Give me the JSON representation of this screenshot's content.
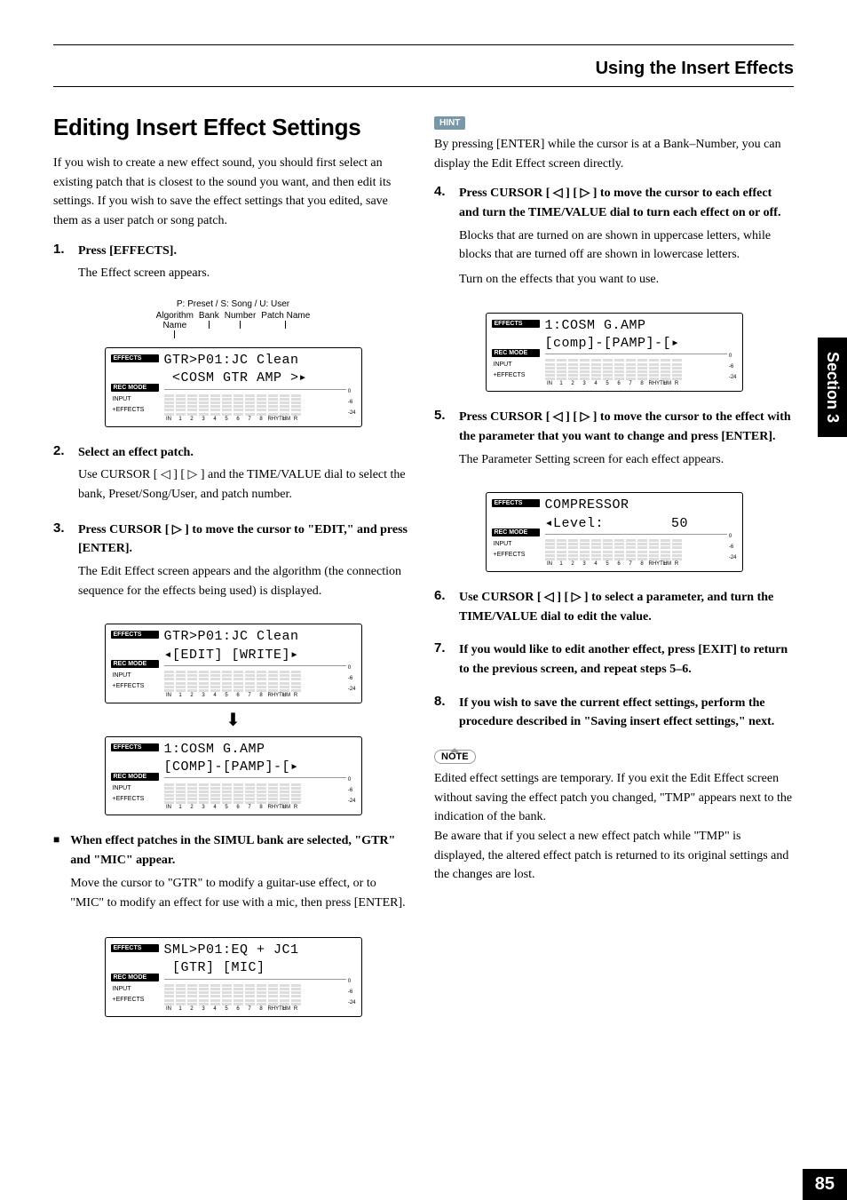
{
  "header": {
    "title": "Using the Insert Effects"
  },
  "h1": "Editing Insert Effect Settings",
  "intro": "If you wish to create a new effect sound, you should first select an existing patch that is closest to the sound you want, and then edit its settings. If you wish to save the effect settings that you edited, save them as a user patch or song patch.",
  "step1": {
    "num": "1.",
    "lead": "Press [EFFECTS].",
    "body": "The Effect screen appears."
  },
  "fig1": {
    "top": "P: Preset / S: Song / U: User",
    "algo": "Algorithm\nName",
    "bank": "Bank",
    "number": "Number",
    "patch": "Patch Name",
    "line1": "GTR>P01:JC Clean",
    "line2": " <COSM GTR AMP >▸",
    "meters": [
      "IN",
      "1",
      "2",
      "3",
      "4",
      "5",
      "6",
      "7",
      "8",
      "RHYTHM",
      "L",
      "R"
    ],
    "scale": [
      "0",
      "-6",
      "-24"
    ],
    "side_effects": "EFFECTS",
    "side_rec": "REC MODE",
    "side_input": "INPUT",
    "side_plus": "+EFFECTS"
  },
  "step2": {
    "num": "2.",
    "lead": "Select an effect patch.",
    "body": "Use CURSOR [ ◁ ] [ ▷ ] and the TIME/VALUE dial to select the bank, Preset/Song/User, and patch number."
  },
  "step3": {
    "num": "3.",
    "lead": "Press CURSOR [ ▷ ] to move the cursor to \"EDIT,\" and press [ENTER].",
    "body": "The Edit Effect screen appears and the algorithm (the connection sequence for the effects being used) is displayed."
  },
  "fig2a": {
    "line1": "GTR>P01:JC Clean",
    "line2": "◂[EDIT] [WRITE]▸"
  },
  "fig2b": {
    "line1": "1:COSM G.AMP",
    "line2": "[COMP]-[PAMP]-[▸"
  },
  "simul": {
    "lead": "When effect patches in the SIMUL bank are selected, \"GTR\" and \"MIC\" appear.",
    "body": "Move the cursor to \"GTR\" to modify a guitar-use effect, or to \"MIC\" to modify an effect for use with a mic, then press [ENTER]."
  },
  "fig3": {
    "line1": "SML>P01:EQ + JC1",
    "line2": " [GTR] [MIC]"
  },
  "hint": {
    "label": "HINT",
    "body": "By pressing [ENTER] while the cursor is at a Bank–Number, you can display the Edit Effect screen directly."
  },
  "step4": {
    "num": "4.",
    "lead": "Press CURSOR [ ◁ ] [ ▷ ] to move the cursor to each effect and turn the TIME/VALUE dial to turn each effect on or off.",
    "body1": "Blocks that are turned on are shown in uppercase letters, while blocks that are turned off are shown in lowercase letters.",
    "body2": "Turn on the effects that you want to use."
  },
  "fig4": {
    "line1": "1:COSM G.AMP",
    "line2": "[comp]-[PAMP]-[▸"
  },
  "step5": {
    "num": "5.",
    "lead": "Press CURSOR [ ◁ ] [ ▷ ] to move the cursor to the effect with the parameter that you want to change and press [ENTER].",
    "body": "The Parameter Setting screen for each effect appears."
  },
  "fig5": {
    "line1": "COMPRESSOR",
    "line2": "◂Level:        50"
  },
  "step6": {
    "num": "6.",
    "lead": "Use CURSOR [ ◁ ] [ ▷ ] to select a parameter, and turn the TIME/VALUE dial to edit the value."
  },
  "step7": {
    "num": "7.",
    "lead": "If you would like to edit another effect, press [EXIT] to return to the previous screen, and repeat steps 5–6."
  },
  "step8": {
    "num": "8.",
    "lead": "If you wish to save the current effect settings, perform the procedure described in \"Saving insert effect settings,\" next."
  },
  "note": {
    "label": "NOTE",
    "body": "Edited effect settings are temporary. If you exit the Edit Effect screen without saving the effect patch you changed, \"TMP\" appears next to the indication of the bank.\nBe aware that if you select a new effect patch while \"TMP\" is displayed, the altered effect patch is returned to its original settings and the changes are lost."
  },
  "sectiontab": "Section 3",
  "pagenum": "85"
}
